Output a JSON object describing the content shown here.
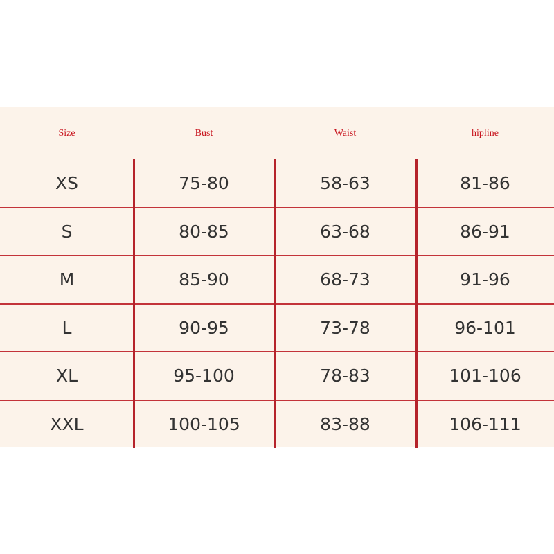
{
  "table": {
    "header": [
      "Size",
      "Bust",
      "Waist",
      "hipline"
    ],
    "rows": [
      [
        "XS",
        "75-80",
        "58-63",
        "81-86"
      ],
      [
        "S",
        "80-85",
        "63-68",
        "86-91"
      ],
      [
        "M",
        "85-90",
        "68-73",
        "91-96"
      ],
      [
        "L",
        "90-95",
        "73-78",
        "96-101"
      ],
      [
        "XL",
        "95-100",
        "78-83",
        "101-106"
      ],
      [
        "XXL",
        "100-105",
        "83-88",
        "106-111"
      ]
    ]
  }
}
